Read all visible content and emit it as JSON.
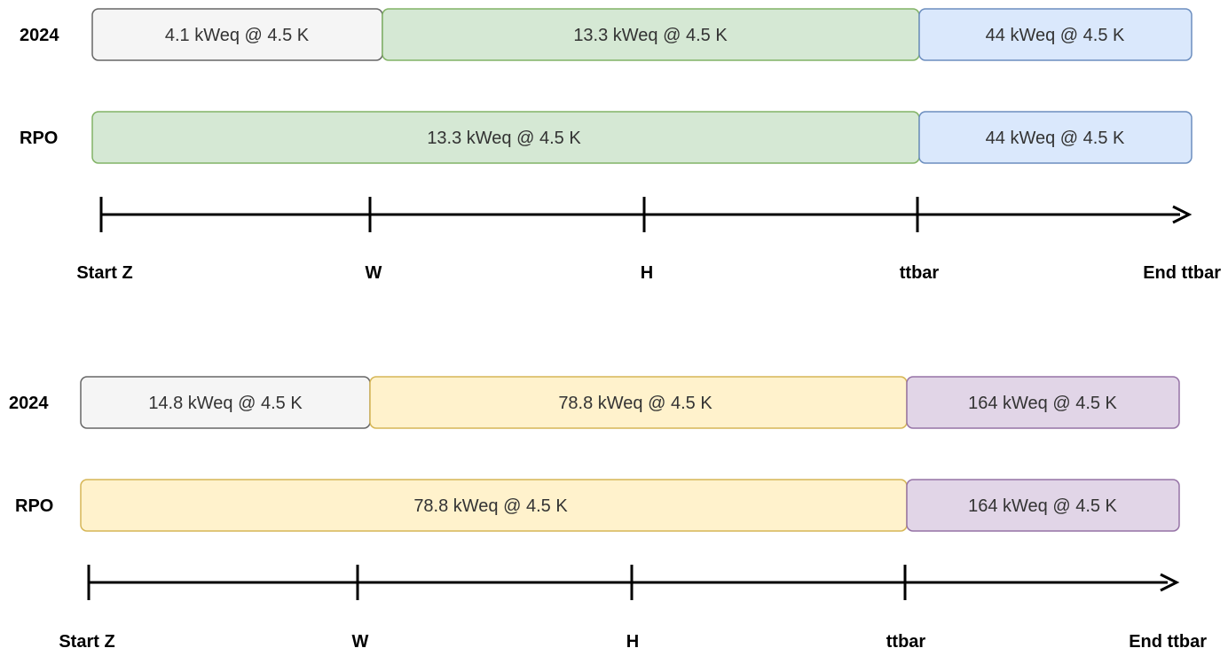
{
  "colors": {
    "gray_fill": "#f5f5f5",
    "gray_stroke": "#666666",
    "green_fill": "#d5e8d4",
    "green_stroke": "#82b366",
    "blue_fill": "#dae8fc",
    "blue_stroke": "#6c8ebf",
    "yellow_fill": "#fff2cc",
    "yellow_stroke": "#d6b656",
    "purple_fill": "#e1d5e7",
    "purple_stroke": "#9673a6",
    "axis": "#000000"
  },
  "diagrams": [
    {
      "rows": [
        {
          "label": "2024",
          "segments": [
            {
              "text": "4.1 kWeq @ 4.5 K",
              "color": "gray"
            },
            {
              "text": "13.3 kWeq @ 4.5 K",
              "color": "green"
            },
            {
              "text": "44 kWeq @ 4.5 K",
              "color": "blue"
            }
          ]
        },
        {
          "label": "RPO",
          "segments": [
            {
              "text": "13.3 kWeq @ 4.5 K",
              "color": "green"
            },
            {
              "text": "44 kWeq @ 4.5 K",
              "color": "blue"
            }
          ]
        }
      ],
      "ticks": [
        "Start Z",
        "W",
        "H",
        "ttbar",
        "End ttbar"
      ]
    },
    {
      "rows": [
        {
          "label": "2024",
          "segments": [
            {
              "text": "14.8 kWeq @ 4.5 K",
              "color": "gray"
            },
            {
              "text": "78.8 kWeq @ 4.5 K",
              "color": "yellow"
            },
            {
              "text": "164 kWeq @ 4.5 K",
              "color": "purple"
            }
          ]
        },
        {
          "label": "RPO",
          "segments": [
            {
              "text": "78.8 kWeq @ 4.5 K",
              "color": "yellow"
            },
            {
              "text": "164 kWeq @ 4.5 K",
              "color": "purple"
            }
          ]
        }
      ],
      "ticks": [
        "Start Z",
        "W",
        "H",
        "ttbar",
        "End ttbar"
      ]
    }
  ]
}
